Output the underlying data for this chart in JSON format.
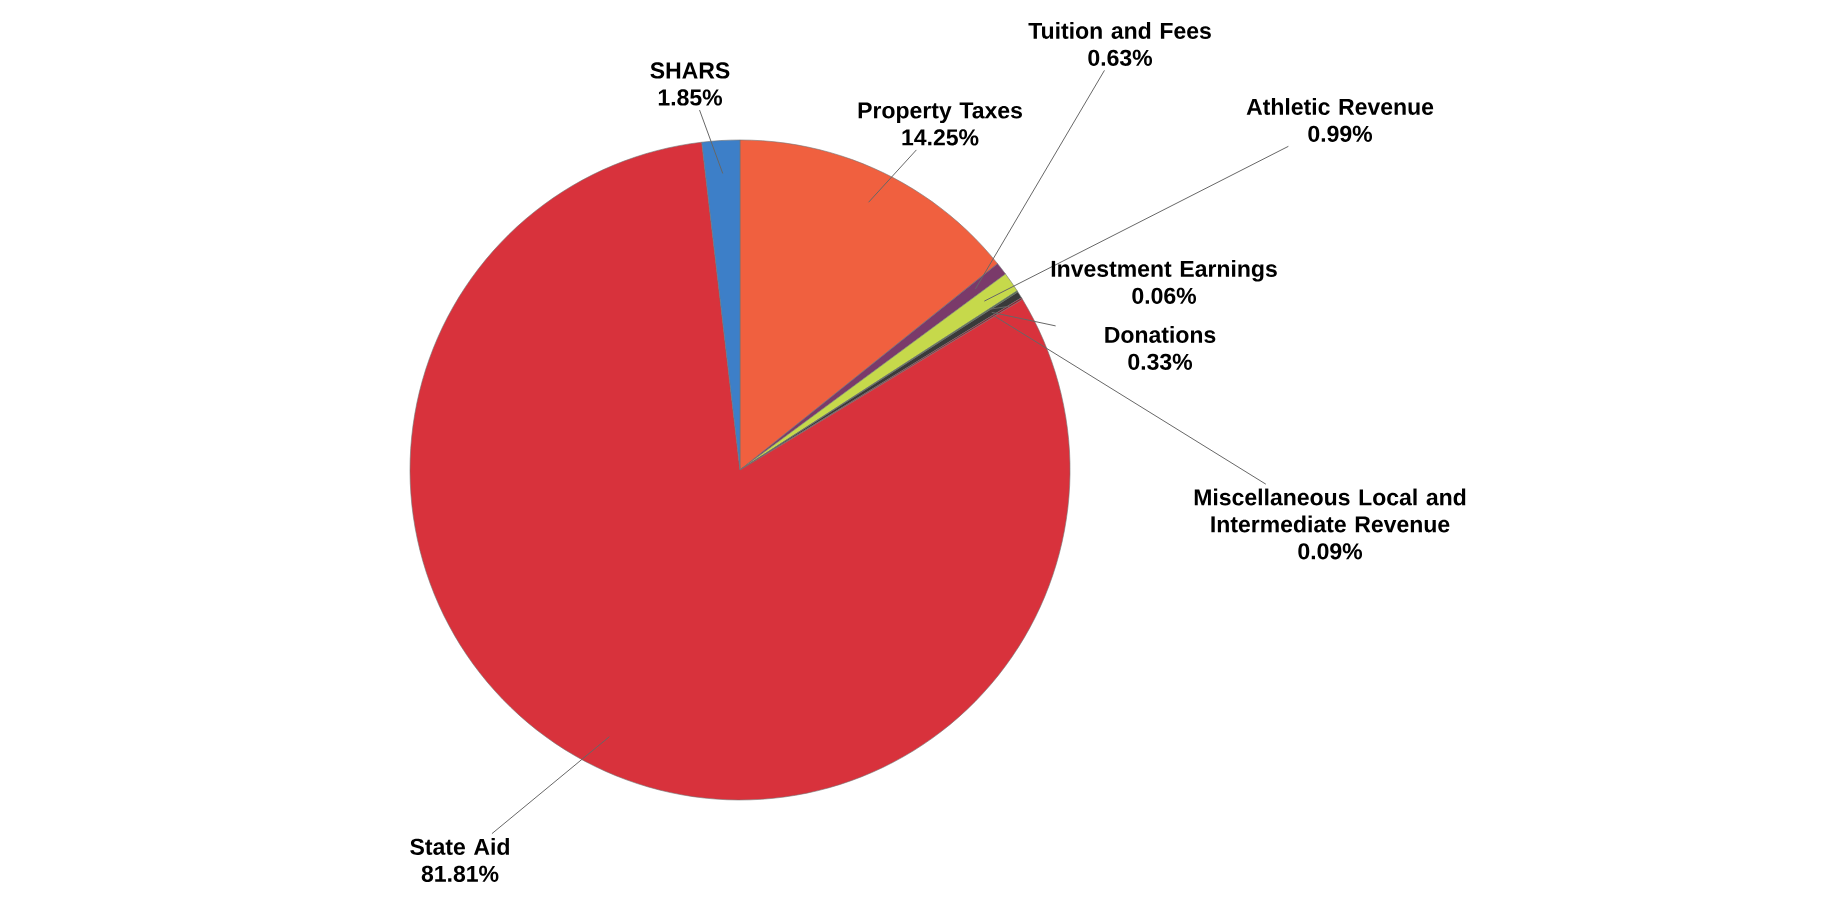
{
  "chart_data": {
    "type": "pie",
    "categories": [
      "Property Taxes",
      "Tuition and Fees",
      "Athletic Revenue",
      "Investment Earnings",
      "Donations",
      "Miscellaneous Local and Intermediate Revenue",
      "State Aid",
      "SHARS"
    ],
    "values": [
      14.25,
      0.63,
      0.99,
      0.06,
      0.33,
      0.09,
      81.81,
      1.85
    ],
    "value_labels": [
      "14.25%",
      "0.63%",
      "0.99%",
      "0.06%",
      "0.33%",
      "0.09%",
      "81.81%",
      "1.85%"
    ],
    "colors": [
      "#f0603f",
      "#7a3a6a",
      "#c6d94b",
      "#4a7a3a",
      "#3a3a3a",
      "#8a2030",
      "#d8323c",
      "#3d7fc8"
    ]
  }
}
